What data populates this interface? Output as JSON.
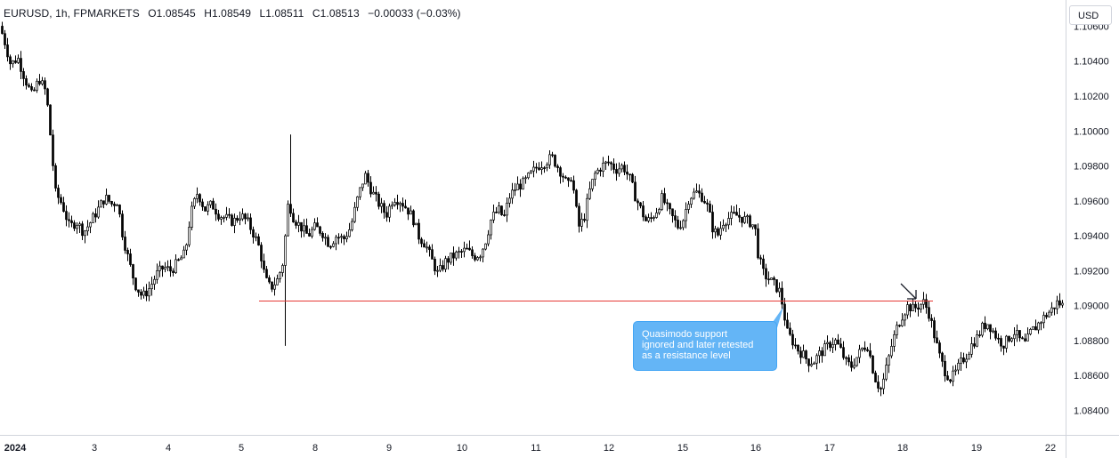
{
  "header": {
    "symbol": "EURUSD, 1h, FPMARKETS",
    "open": "O1.08545",
    "high": "H1.08549",
    "low": "L1.08511",
    "close": "C1.08513",
    "change": "−0.00033 (−0.03%)"
  },
  "currency_button": "USD",
  "annotation": {
    "line1": "Quasimodo support",
    "line2": "ignored and later retested",
    "line3": "as a resistance level"
  },
  "colors": {
    "candle": "#000000",
    "support_line": "#e53935",
    "callout_bg": "#64b5f6",
    "axis_text": "#131722"
  },
  "chart_data": {
    "type": "candlestick",
    "symbol": "EURUSD",
    "timeframe": "1h",
    "x_tick_labels": [
      "2024",
      "3",
      "4",
      "5",
      "8",
      "9",
      "10",
      "11",
      "12",
      "15",
      "16",
      "17",
      "18",
      "19",
      "22"
    ],
    "y_tick_labels": [
      "1.10600",
      "1.10400",
      "1.10200",
      "1.10000",
      "1.09800",
      "1.09600",
      "1.09400",
      "1.09200",
      "1.09000",
      "1.08800",
      "1.08600",
      "1.08400"
    ],
    "ylim": [
      1.0826,
      1.1075
    ],
    "horizontal_line": {
      "value": 1.0903,
      "label": "Quasimodo support"
    },
    "price_path": [
      [
        0,
        1.106
      ],
      [
        6,
        1.105
      ],
      [
        12,
        1.1038
      ],
      [
        20,
        1.1042
      ],
      [
        28,
        1.103
      ],
      [
        36,
        1.102
      ],
      [
        44,
        1.103
      ],
      [
        52,
        1.1022
      ],
      [
        58,
        1.099
      ],
      [
        62,
        1.0965
      ],
      [
        70,
        1.0958
      ],
      [
        78,
        1.0945
      ],
      [
        86,
        1.0948
      ],
      [
        94,
        1.0942
      ],
      [
        102,
        1.0948
      ],
      [
        110,
        1.0955
      ],
      [
        118,
        1.0962
      ],
      [
        126,
        1.0958
      ],
      [
        132,
        1.096
      ],
      [
        138,
        1.094
      ],
      [
        145,
        1.0925
      ],
      [
        152,
        1.0912
      ],
      [
        160,
        1.0905
      ],
      [
        168,
        1.091
      ],
      [
        176,
        1.0918
      ],
      [
        184,
        1.0922
      ],
      [
        192,
        1.092
      ],
      [
        200,
        1.0925
      ],
      [
        208,
        1.093
      ],
      [
        214,
        1.0952
      ],
      [
        222,
        1.0965
      ],
      [
        230,
        1.0955
      ],
      [
        238,
        1.0958
      ],
      [
        246,
        1.0952
      ],
      [
        254,
        1.095
      ],
      [
        262,
        1.0948
      ],
      [
        270,
        1.0952
      ],
      [
        278,
        1.0948
      ],
      [
        286,
        1.094
      ],
      [
        292,
        1.0932
      ],
      [
        298,
        1.0915
      ],
      [
        304,
        1.091
      ],
      [
        312,
        1.0915
      ],
      [
        318,
        1.0925
      ],
      [
        324,
        1.096
      ],
      [
        330,
        1.095
      ],
      [
        338,
        1.0945
      ],
      [
        346,
        1.094
      ],
      [
        354,
        1.0945
      ],
      [
        362,
        1.0942
      ],
      [
        370,
        1.0935
      ],
      [
        378,
        1.094
      ],
      [
        386,
        1.0938
      ],
      [
        394,
        1.0945
      ],
      [
        402,
        1.0962
      ],
      [
        410,
        1.0975
      ],
      [
        418,
        1.0965
      ],
      [
        426,
        1.0958
      ],
      [
        434,
        1.0952
      ],
      [
        442,
        1.0962
      ],
      [
        450,
        1.096
      ],
      [
        458,
        1.0955
      ],
      [
        464,
        1.095
      ],
      [
        470,
        1.094
      ],
      [
        478,
        1.0935
      ],
      [
        486,
        1.0925
      ],
      [
        492,
        1.0918
      ],
      [
        500,
        1.0925
      ],
      [
        508,
        1.0928
      ],
      [
        516,
        1.093
      ],
      [
        524,
        1.0932
      ],
      [
        532,
        1.0928
      ],
      [
        540,
        1.093
      ],
      [
        546,
        1.0938
      ],
      [
        552,
        1.095
      ],
      [
        560,
        1.0955
      ],
      [
        566,
        1.095
      ],
      [
        572,
        1.0962
      ],
      [
        580,
        1.0968
      ],
      [
        588,
        1.097
      ],
      [
        596,
        1.0975
      ],
      [
        604,
        1.098
      ],
      [
        612,
        1.0982
      ],
      [
        620,
        1.0985
      ],
      [
        626,
        1.098
      ],
      [
        632,
        1.0975
      ],
      [
        638,
        1.0968
      ],
      [
        642,
        1.0975
      ],
      [
        646,
        1.096
      ],
      [
        650,
        1.0945
      ],
      [
        656,
        1.095
      ],
      [
        662,
        1.0965
      ],
      [
        668,
        1.0975
      ],
      [
        676,
        1.098
      ],
      [
        684,
        1.0982
      ],
      [
        692,
        1.0978
      ],
      [
        700,
        1.098
      ],
      [
        708,
        1.0972
      ],
      [
        714,
        1.0962
      ],
      [
        720,
        1.0955
      ],
      [
        726,
        1.0948
      ],
      [
        732,
        1.095
      ],
      [
        738,
        1.0955
      ],
      [
        744,
        1.0962
      ],
      [
        750,
        1.0955
      ],
      [
        756,
        1.095
      ],
      [
        762,
        1.0945
      ],
      [
        768,
        1.095
      ],
      [
        774,
        1.0962
      ],
      [
        782,
        1.0965
      ],
      [
        790,
        1.0962
      ],
      [
        796,
        1.0955
      ],
      [
        800,
        1.0945
      ],
      [
        806,
        1.094
      ],
      [
        812,
        1.0948
      ],
      [
        818,
        1.095
      ],
      [
        826,
        1.0952
      ],
      [
        834,
        1.095
      ],
      [
        842,
        1.0948
      ],
      [
        848,
        1.0945
      ],
      [
        852,
        1.0928
      ],
      [
        858,
        1.0918
      ],
      [
        864,
        1.0915
      ],
      [
        870,
        1.0912
      ],
      [
        876,
        1.0908
      ],
      [
        880,
        1.0898
      ],
      [
        884,
        1.0885
      ],
      [
        890,
        1.088
      ],
      [
        896,
        1.0875
      ],
      [
        902,
        1.0872
      ],
      [
        908,
        1.0868
      ],
      [
        914,
        1.0868
      ],
      [
        920,
        1.0872
      ],
      [
        926,
        1.0875
      ],
      [
        932,
        1.0878
      ],
      [
        938,
        1.088
      ],
      [
        944,
        1.0875
      ],
      [
        950,
        1.0868
      ],
      [
        956,
        1.0865
      ],
      [
        962,
        1.087
      ],
      [
        968,
        1.0875
      ],
      [
        974,
        1.0878
      ],
      [
        978,
        1.087
      ],
      [
        982,
        1.086
      ],
      [
        986,
        1.0855
      ],
      [
        990,
        1.0852
      ],
      [
        996,
        1.0865
      ],
      [
        1002,
        1.0878
      ],
      [
        1008,
        1.0888
      ],
      [
        1014,
        1.0895
      ],
      [
        1020,
        1.09
      ],
      [
        1026,
        1.0898
      ],
      [
        1032,
        1.09
      ],
      [
        1038,
        1.0902
      ],
      [
        1044,
        1.0895
      ],
      [
        1050,
        1.0882
      ],
      [
        1056,
        1.087
      ],
      [
        1062,
        1.0862
      ],
      [
        1068,
        1.0858
      ],
      [
        1074,
        1.0862
      ],
      [
        1080,
        1.0868
      ],
      [
        1086,
        1.0872
      ],
      [
        1092,
        1.0878
      ],
      [
        1098,
        1.0882
      ],
      [
        1104,
        1.0888
      ],
      [
        1110,
        1.089
      ],
      [
        1116,
        1.0885
      ],
      [
        1122,
        1.088
      ],
      [
        1128,
        1.0878
      ],
      [
        1134,
        1.0882
      ],
      [
        1140,
        1.0885
      ],
      [
        1146,
        1.088
      ],
      [
        1152,
        1.0878
      ],
      [
        1158,
        1.0885
      ],
      [
        1164,
        1.0888
      ],
      [
        1170,
        1.0892
      ],
      [
        1176,
        1.0895
      ],
      [
        1182,
        1.0898
      ],
      [
        1188,
        1.0902
      ],
      [
        1194,
        1.09
      ]
    ]
  }
}
